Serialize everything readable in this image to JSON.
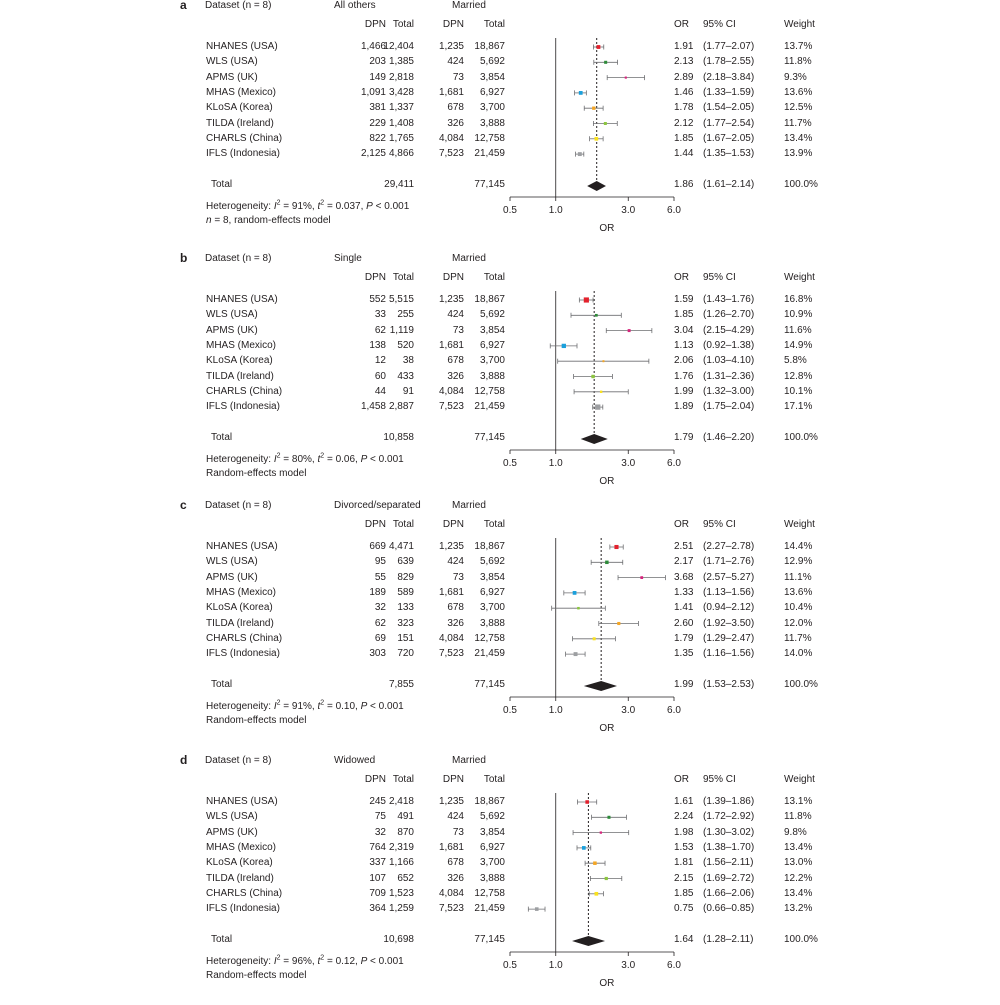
{
  "chart_data": [
    {
      "type": "forest",
      "panel_letter": "a",
      "dataset_header": "Dataset (n = 8)",
      "group_header": "All others",
      "ref_header": "Married",
      "col_headers": {
        "dpn1": "DPN",
        "total1": "Total",
        "dpn2": "DPN",
        "total2": "Total",
        "or": "OR",
        "ci": "95% CI",
        "weight": "Weight"
      },
      "xlabel": "OR",
      "x_ticks": [
        "0.5",
        "1.0",
        "3.0",
        "6.0"
      ],
      "x_tick_values": [
        0.5,
        1.0,
        3.0,
        6.0
      ],
      "x_scale": "log",
      "xlim": [
        0.5,
        6.0
      ],
      "rows": [
        {
          "name": "NHANES (USA)",
          "dpn1": "1,466",
          "total1": "12,404",
          "dpn2": "1,235",
          "total2": "18,867",
          "or": 1.91,
          "lo": 1.77,
          "hi": 2.07,
          "or_text": "1.91",
          "ci_text": "(1.77–2.07)",
          "weight_text": "13.7%",
          "weight": 13.7,
          "color": "#e3212d"
        },
        {
          "name": "WLS (USA)",
          "dpn1": "203",
          "total1": "1,385",
          "dpn2": "424",
          "total2": "5,692",
          "or": 2.13,
          "lo": 1.78,
          "hi": 2.55,
          "or_text": "2.13",
          "ci_text": "(1.78–2.55)",
          "weight_text": "11.8%",
          "weight": 11.8,
          "color": "#2e8b3a"
        },
        {
          "name": "APMS (UK)",
          "dpn1": "149",
          "total1": "2,818",
          "dpn2": "73",
          "total2": "3,854",
          "or": 2.89,
          "lo": 2.18,
          "hi": 3.84,
          "or_text": "2.89",
          "ci_text": "(2.18–3.84)",
          "weight_text": "9.3%",
          "weight": 9.3,
          "color": "#d6247c"
        },
        {
          "name": "MHAS (Mexico)",
          "dpn1": "1,091",
          "total1": "3,428",
          "dpn2": "1,681",
          "total2": "6,927",
          "or": 1.46,
          "lo": 1.33,
          "hi": 1.59,
          "or_text": "1.46",
          "ci_text": "(1.33–1.59)",
          "weight_text": "13.6%",
          "weight": 13.6,
          "color": "#1aa0dc"
        },
        {
          "name": "KLoSA (Korea)",
          "dpn1": "381",
          "total1": "1,337",
          "dpn2": "678",
          "total2": "3,700",
          "or": 1.78,
          "lo": 1.54,
          "hi": 2.05,
          "or_text": "1.78",
          "ci_text": "(1.54–2.05)",
          "weight_text": "12.5%",
          "weight": 12.5,
          "color": "#f5a623"
        },
        {
          "name": "TILDA (Ireland)",
          "dpn1": "229",
          "total1": "1,408",
          "dpn2": "326",
          "total2": "3,888",
          "or": 2.12,
          "lo": 1.77,
          "hi": 2.54,
          "or_text": "2.12",
          "ci_text": "(1.77–2.54)",
          "weight_text": "11.7%",
          "weight": 11.7,
          "color": "#8cc63f"
        },
        {
          "name": "CHARLS (China)",
          "dpn1": "822",
          "total1": "1,765",
          "dpn2": "4,084",
          "total2": "12,758",
          "or": 1.85,
          "lo": 1.67,
          "hi": 2.05,
          "or_text": "1.85",
          "ci_text": "(1.67–2.05)",
          "weight_text": "13.4%",
          "weight": 13.4,
          "color": "#f9e11e"
        },
        {
          "name": "IFLS (Indonesia)",
          "dpn1": "2,125",
          "total1": "4,866",
          "dpn2": "7,523",
          "total2": "21,459",
          "or": 1.44,
          "lo": 1.35,
          "hi": 1.53,
          "or_text": "1.44",
          "ci_text": "(1.35–1.53)",
          "weight_text": "13.9%",
          "weight": 13.9,
          "color": "#9d9fa2"
        }
      ],
      "total": {
        "label": "Total",
        "total1": "29,411",
        "total2": "77,145",
        "or": 1.86,
        "lo": 1.61,
        "hi": 2.14,
        "or_text": "1.86",
        "ci_text": "(1.61–2.14)",
        "weight_text": "100.0%"
      },
      "footnote_line1": {
        "prefix": "Heterogeneity: ",
        "i2": "I",
        "i2_sup": "2",
        "i2_val": " = 91%, ",
        "tau": "t",
        "tau_sup": "2",
        "tau_val": " = 0.037, ",
        "p": "P",
        "p_val": " < 0.001"
      },
      "footnote_line2": {
        "n": "n",
        "rest": " = 8, random-effects model"
      }
    },
    {
      "type": "forest",
      "panel_letter": "b",
      "dataset_header": "Dataset (n = 8)",
      "group_header": "Single",
      "ref_header": "Married",
      "col_headers": {
        "dpn1": "DPN",
        "total1": "Total",
        "dpn2": "DPN",
        "total2": "Total",
        "or": "OR",
        "ci": "95% CI",
        "weight": "Weight"
      },
      "xlabel": "OR",
      "x_ticks": [
        "0.5",
        "1.0",
        "3.0",
        "6.0"
      ],
      "x_tick_values": [
        0.5,
        1.0,
        3.0,
        6.0
      ],
      "x_scale": "log",
      "xlim": [
        0.5,
        6.0
      ],
      "rows": [
        {
          "name": "NHANES (USA)",
          "dpn1": "552",
          "total1": "5,515",
          "dpn2": "1,235",
          "total2": "18,867",
          "or": 1.59,
          "lo": 1.43,
          "hi": 1.76,
          "or_text": "1.59",
          "ci_text": "(1.43–1.76)",
          "weight_text": "16.8%",
          "weight": 16.8,
          "color": "#e3212d"
        },
        {
          "name": "WLS (USA)",
          "dpn1": "33",
          "total1": "255",
          "dpn2": "424",
          "total2": "5,692",
          "or": 1.85,
          "lo": 1.26,
          "hi": 2.7,
          "or_text": "1.85",
          "ci_text": "(1.26–2.70)",
          "weight_text": "10.9%",
          "weight": 10.9,
          "color": "#2e8b3a"
        },
        {
          "name": "APMS (UK)",
          "dpn1": "62",
          "total1": "1,119",
          "dpn2": "73",
          "total2": "3,854",
          "or": 3.04,
          "lo": 2.15,
          "hi": 4.29,
          "or_text": "3.04",
          "ci_text": "(2.15–4.29)",
          "weight_text": "11.6%",
          "weight": 11.6,
          "color": "#d6247c"
        },
        {
          "name": "MHAS (Mexico)",
          "dpn1": "138",
          "total1": "520",
          "dpn2": "1,681",
          "total2": "6,927",
          "or": 1.13,
          "lo": 0.92,
          "hi": 1.38,
          "or_text": "1.13",
          "ci_text": "(0.92–1.38)",
          "weight_text": "14.9%",
          "weight": 14.9,
          "color": "#1aa0dc"
        },
        {
          "name": "KLoSA (Korea)",
          "dpn1": "12",
          "total1": "38",
          "dpn2": "678",
          "total2": "3,700",
          "or": 2.06,
          "lo": 1.03,
          "hi": 4.1,
          "or_text": "2.06",
          "ci_text": "(1.03–4.10)",
          "weight_text": "5.8%",
          "weight": 5.8,
          "color": "#f5a623"
        },
        {
          "name": "TILDA (Ireland)",
          "dpn1": "60",
          "total1": "433",
          "dpn2": "326",
          "total2": "3,888",
          "or": 1.76,
          "lo": 1.31,
          "hi": 2.36,
          "or_text": "1.76",
          "ci_text": "(1.31–2.36)",
          "weight_text": "12.8%",
          "weight": 12.8,
          "color": "#8cc63f"
        },
        {
          "name": "CHARLS (China)",
          "dpn1": "44",
          "total1": "91",
          "dpn2": "4,084",
          "total2": "12,758",
          "or": 1.99,
          "lo": 1.32,
          "hi": 3.0,
          "or_text": "1.99",
          "ci_text": "(1.32–3.00)",
          "weight_text": "10.1%",
          "weight": 10.1,
          "color": "#f9e11e"
        },
        {
          "name": "IFLS (Indonesia)",
          "dpn1": "1,458",
          "total1": "2,887",
          "dpn2": "7,523",
          "total2": "21,459",
          "or": 1.89,
          "lo": 1.75,
          "hi": 2.04,
          "or_text": "1.89",
          "ci_text": "(1.75–2.04)",
          "weight_text": "17.1%",
          "weight": 17.1,
          "color": "#9d9fa2"
        }
      ],
      "total": {
        "label": "Total",
        "total1": "10,858",
        "total2": "77,145",
        "or": 1.79,
        "lo": 1.46,
        "hi": 2.2,
        "or_text": "1.79",
        "ci_text": "(1.46–2.20)",
        "weight_text": "100.0%"
      },
      "footnote_line1": {
        "prefix": "Heterogeneity: ",
        "i2": "I",
        "i2_sup": "2",
        "i2_val": " = 80%, ",
        "tau": "t",
        "tau_sup": "2",
        "tau_val": " = 0.06, ",
        "p": "P",
        "p_val": " < 0.001"
      },
      "footnote_line2": {
        "n": "",
        "rest": "Random-effects model"
      }
    },
    {
      "type": "forest",
      "panel_letter": "c",
      "dataset_header": "Dataset (n = 8)",
      "group_header": "Divorced/separated",
      "ref_header": "Married",
      "col_headers": {
        "dpn1": "DPN",
        "total1": "Total",
        "dpn2": "DPN",
        "total2": "Total",
        "or": "OR",
        "ci": "95% CI",
        "weight": "Weight"
      },
      "xlabel": "OR",
      "x_ticks": [
        "0.5",
        "1.0",
        "3.0",
        "6.0"
      ],
      "x_tick_values": [
        0.5,
        1.0,
        3.0,
        6.0
      ],
      "x_scale": "log",
      "xlim": [
        0.5,
        6.0
      ],
      "rows": [
        {
          "name": "NHANES (USA)",
          "dpn1": "669",
          "total1": "4,471",
          "dpn2": "1,235",
          "total2": "18,867",
          "or": 2.51,
          "lo": 2.27,
          "hi": 2.78,
          "or_text": "2.51",
          "ci_text": "(2.27–2.78)",
          "weight_text": "14.4%",
          "weight": 14.4,
          "color": "#e3212d"
        },
        {
          "name": "WLS (USA)",
          "dpn1": "95",
          "total1": "639",
          "dpn2": "424",
          "total2": "5,692",
          "or": 2.17,
          "lo": 1.71,
          "hi": 2.76,
          "or_text": "2.17",
          "ci_text": "(1.71–2.76)",
          "weight_text": "12.9%",
          "weight": 12.9,
          "color": "#2e8b3a"
        },
        {
          "name": "APMS (UK)",
          "dpn1": "55",
          "total1": "829",
          "dpn2": "73",
          "total2": "3,854",
          "or": 3.68,
          "lo": 2.57,
          "hi": 5.27,
          "or_text": "3.68",
          "ci_text": "(2.57–5.27)",
          "weight_text": "11.1%",
          "weight": 11.1,
          "color": "#d6247c"
        },
        {
          "name": "MHAS (Mexico)",
          "dpn1": "189",
          "total1": "589",
          "dpn2": "1,681",
          "total2": "6,927",
          "or": 1.33,
          "lo": 1.13,
          "hi": 1.56,
          "or_text": "1.33",
          "ci_text": "(1.13–1.56)",
          "weight_text": "13.6%",
          "weight": 13.6,
          "color": "#1aa0dc"
        },
        {
          "name": "KLoSA (Korea)",
          "dpn1": "32",
          "total1": "133",
          "dpn2": "678",
          "total2": "3,700",
          "or": 1.41,
          "lo": 0.94,
          "hi": 2.12,
          "or_text": "1.41",
          "ci_text": "(0.94–2.12)",
          "weight_text": "10.4%",
          "weight": 10.4,
          "color": "#8cc63f"
        },
        {
          "name": "TILDA (Ireland)",
          "dpn1": "62",
          "total1": "323",
          "dpn2": "326",
          "total2": "3,888",
          "or": 2.6,
          "lo": 1.92,
          "hi": 3.5,
          "or_text": "2.60",
          "ci_text": "(1.92–3.50)",
          "weight_text": "12.0%",
          "weight": 12.0,
          "color": "#f5a623"
        },
        {
          "name": "CHARLS (China)",
          "dpn1": "69",
          "total1": "151",
          "dpn2": "4,084",
          "total2": "12,758",
          "or": 1.79,
          "lo": 1.29,
          "hi": 2.47,
          "or_text": "1.79",
          "ci_text": "(1.29–2.47)",
          "weight_text": "11.7%",
          "weight": 11.7,
          "color": "#f9e11e"
        },
        {
          "name": "IFLS (Indonesia)",
          "dpn1": "303",
          "total1": "720",
          "dpn2": "7,523",
          "total2": "21,459",
          "or": 1.35,
          "lo": 1.16,
          "hi": 1.56,
          "or_text": "1.35",
          "ci_text": "(1.16–1.56)",
          "weight_text": "14.0%",
          "weight": 14.0,
          "color": "#9d9fa2"
        }
      ],
      "total": {
        "label": "Total",
        "total1": "7,855",
        "total2": "77,145",
        "or": 1.99,
        "lo": 1.53,
        "hi": 2.53,
        "or_text": "1.99",
        "ci_text": "(1.53–2.53)",
        "weight_text": "100.0%"
      },
      "footnote_line1": {
        "prefix": "Heterogeneity: ",
        "i2": "I",
        "i2_sup": "2",
        "i2_val": " = 91%, ",
        "tau": "t",
        "tau_sup": "2",
        "tau_val": " = 0.10, ",
        "p": "P",
        "p_val": " < 0.001"
      },
      "footnote_line2": {
        "n": "",
        "rest": "Random-effects model"
      }
    },
    {
      "type": "forest",
      "panel_letter": "d",
      "dataset_header": "Dataset (n = 8)",
      "group_header": "Widowed",
      "ref_header": "Married",
      "col_headers": {
        "dpn1": "DPN",
        "total1": "Total",
        "dpn2": "DPN",
        "total2": "Total",
        "or": "OR",
        "ci": "95% CI",
        "weight": "Weight"
      },
      "xlabel": "OR",
      "x_ticks": [
        "0.5",
        "1.0",
        "3.0",
        "6.0"
      ],
      "x_tick_values": [
        0.5,
        1.0,
        3.0,
        6.0
      ],
      "x_scale": "log",
      "xlim": [
        0.5,
        6.0
      ],
      "rows": [
        {
          "name": "NHANES (USA)",
          "dpn1": "245",
          "total1": "2,418",
          "dpn2": "1,235",
          "total2": "18,867",
          "or": 1.61,
          "lo": 1.39,
          "hi": 1.86,
          "or_text": "1.61",
          "ci_text": "(1.39–1.86)",
          "weight_text": "13.1%",
          "weight": 13.1,
          "color": "#e3212d"
        },
        {
          "name": "WLS (USA)",
          "dpn1": "75",
          "total1": "491",
          "dpn2": "424",
          "total2": "5,692",
          "or": 2.24,
          "lo": 1.72,
          "hi": 2.92,
          "or_text": "2.24",
          "ci_text": "(1.72–2.92)",
          "weight_text": "11.8%",
          "weight": 11.8,
          "color": "#2e8b3a"
        },
        {
          "name": "APMS (UK)",
          "dpn1": "32",
          "total1": "870",
          "dpn2": "73",
          "total2": "3,854",
          "or": 1.98,
          "lo": 1.3,
          "hi": 3.02,
          "or_text": "1.98",
          "ci_text": "(1.30–3.02)",
          "weight_text": "9.8%",
          "weight": 9.8,
          "color": "#d6247c"
        },
        {
          "name": "MHAS (Mexico)",
          "dpn1": "764",
          "total1": "2,319",
          "dpn2": "1,681",
          "total2": "6,927",
          "or": 1.53,
          "lo": 1.38,
          "hi": 1.7,
          "or_text": "1.53",
          "ci_text": "(1.38–1.70)",
          "weight_text": "13.4%",
          "weight": 13.4,
          "color": "#1aa0dc"
        },
        {
          "name": "KLoSA (Korea)",
          "dpn1": "337",
          "total1": "1,166",
          "dpn2": "678",
          "total2": "3,700",
          "or": 1.81,
          "lo": 1.56,
          "hi": 2.11,
          "or_text": "1.81",
          "ci_text": "(1.56–2.11)",
          "weight_text": "13.0%",
          "weight": 13.0,
          "color": "#f5a623"
        },
        {
          "name": "TILDA (Ireland)",
          "dpn1": "107",
          "total1": "652",
          "dpn2": "326",
          "total2": "3,888",
          "or": 2.15,
          "lo": 1.69,
          "hi": 2.72,
          "or_text": "2.15",
          "ci_text": "(1.69–2.72)",
          "weight_text": "12.2%",
          "weight": 12.2,
          "color": "#8cc63f"
        },
        {
          "name": "CHARLS (China)",
          "dpn1": "709",
          "total1": "1,523",
          "dpn2": "4,084",
          "total2": "12,758",
          "or": 1.85,
          "lo": 1.66,
          "hi": 2.06,
          "or_text": "1.85",
          "ci_text": "(1.66–2.06)",
          "weight_text": "13.4%",
          "weight": 13.4,
          "color": "#f9e11e"
        },
        {
          "name": "IFLS (Indonesia)",
          "dpn1": "364",
          "total1": "1,259",
          "dpn2": "7,523",
          "total2": "21,459",
          "or": 0.75,
          "lo": 0.66,
          "hi": 0.85,
          "or_text": "0.75",
          "ci_text": "(0.66–0.85)",
          "weight_text": "13.2%",
          "weight": 13.2,
          "color": "#9d9fa2"
        }
      ],
      "total": {
        "label": "Total",
        "total1": "10,698",
        "total2": "77,145",
        "or": 1.64,
        "lo": 1.28,
        "hi": 2.11,
        "or_text": "1.64",
        "ci_text": "(1.28–2.11)",
        "weight_text": "100.0%"
      },
      "footnote_line1": {
        "prefix": "Heterogeneity: ",
        "i2": "I",
        "i2_sup": "2",
        "i2_val": " = 96%, ",
        "tau": "t",
        "tau_sup": "2",
        "tau_val": " = 0.12, ",
        "p": "P",
        "p_val": " < 0.001"
      },
      "footnote_line2": {
        "n": "",
        "rest": "Random-effects model"
      }
    }
  ]
}
